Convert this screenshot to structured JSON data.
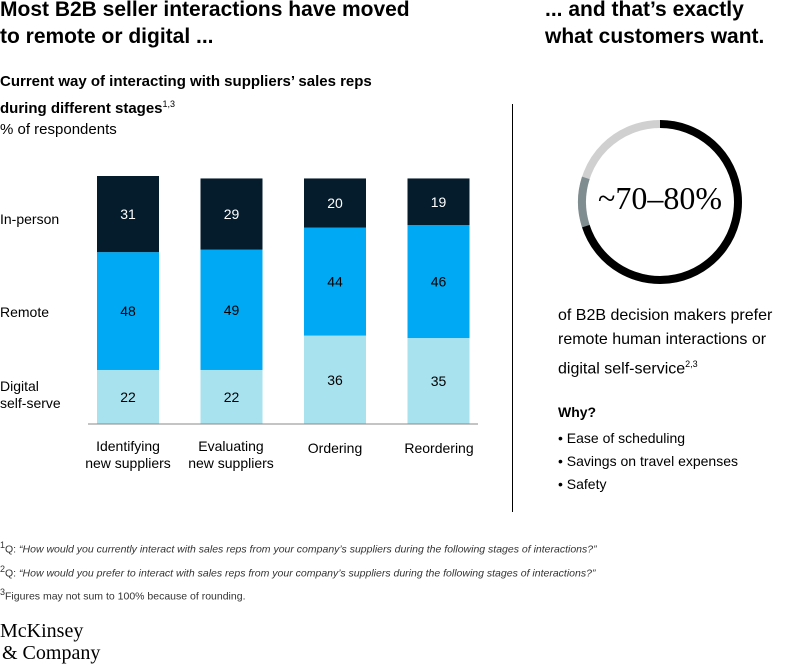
{
  "left_headline": "Most B2B seller interactions have moved\nto remote or digital ...",
  "right_headline": "... and that’s exactly\nwhat customers want.",
  "chart_data": {
    "type": "bar",
    "stacked": true,
    "title": "Current way of interacting with suppliers’ sales reps during different stages",
    "title_footnote_refs": "1,3",
    "unit_label": "% of respondents",
    "categories": [
      "Identifying\nnew suppliers",
      "Evaluating\nnew suppliers",
      "Ordering",
      "Reordering"
    ],
    "series": [
      {
        "name": "Digital\nself-serve",
        "color": "#a9e2ef",
        "values": [
          22,
          22,
          36,
          35
        ]
      },
      {
        "name": "Remote",
        "color": "#00a9f4",
        "values": [
          48,
          49,
          44,
          46
        ]
      },
      {
        "name": "In-person",
        "color": "#051c2c",
        "values": [
          31,
          29,
          20,
          19
        ]
      }
    ],
    "ylim": [
      0,
      101
    ],
    "grid": false,
    "legend": "left"
  },
  "donut": {
    "value_label": "~70–80%",
    "share_low": 0.7,
    "share_high": 0.8,
    "color_main": "#000000",
    "color_range": "#7f8c90",
    "color_rest": "#d0d0d0"
  },
  "preference": {
    "text": "of B2B decision makers prefer remote human interactions or digital self-service",
    "footnote_refs": "2,3"
  },
  "why": {
    "title": "Why?",
    "reasons": [
      "• Ease of scheduling",
      "• Savings on travel expenses",
      "• Safety"
    ]
  },
  "footnotes": [
    {
      "num": "1",
      "prefix": "Q: ",
      "text": "“How would you currently interact with sales reps from your company’s suppliers during the following stages of interactions?”"
    },
    {
      "num": "2",
      "prefix": "Q: ",
      "text": "“How would you prefer to interact with sales reps from your company’s suppliers during the following stages of interactions?”"
    },
    {
      "num": "3",
      "prefix": "",
      "text": "Figures may not sum to 100% because of rounding."
    }
  ],
  "logo": {
    "line1": "McKinsey",
    "line2": "& Company"
  }
}
